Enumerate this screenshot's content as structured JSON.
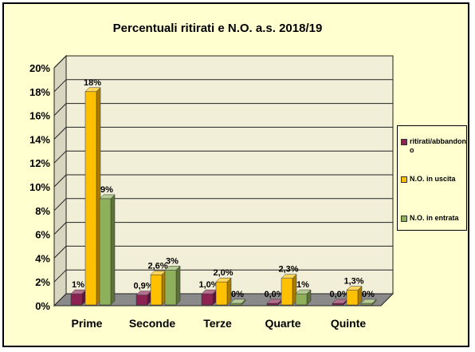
{
  "chart_data": {
    "type": "bar",
    "title": "Percentuali  ritirati  e N.O. a.s. 2018/19",
    "categories": [
      "Prime",
      "Seconde",
      "Terze",
      "Quarte",
      "Quinte"
    ],
    "series": [
      {
        "name": "ritirati/abbandono",
        "color": "#8b2252",
        "values": [
          1,
          0.9,
          1.0,
          0.0,
          0.0
        ],
        "labels": [
          "1%",
          "0,9%",
          "1,0%",
          "0,0%",
          "0,0%"
        ]
      },
      {
        "name": "N.O. in uscita",
        "color": "#ffc000",
        "values": [
          18,
          2.6,
          2.0,
          2.3,
          1.3
        ],
        "labels": [
          "18%",
          "2,6%",
          "2,0%",
          "2,3%",
          "1,3%"
        ]
      },
      {
        "name": "N.O. in entrata",
        "color": "#8fb05a",
        "values": [
          9,
          3,
          0,
          1,
          0
        ],
        "labels": [
          "9%",
          "3%",
          "0%",
          "1%",
          "0%"
        ]
      }
    ],
    "ylim": [
      0,
      20
    ],
    "yticks": [
      "0%",
      "2%",
      "4%",
      "6%",
      "8%",
      "10%",
      "12%",
      "14%",
      "16%",
      "18%",
      "20%"
    ],
    "grid": true,
    "legend_position": "right"
  }
}
